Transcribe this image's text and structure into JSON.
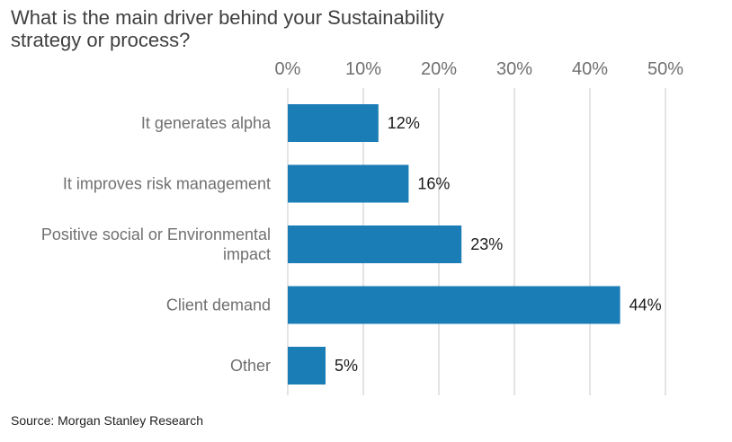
{
  "chart_data": {
    "type": "bar",
    "orientation": "horizontal",
    "title": "What is the main driver behind your Sustainability strategy or process?",
    "categories": [
      [
        "It generates alpha"
      ],
      [
        "It improves risk management"
      ],
      [
        "Positive social or Environmental",
        "impact"
      ],
      [
        "Client demand"
      ],
      [
        "Other"
      ]
    ],
    "values": [
      12,
      16,
      23,
      44,
      5
    ],
    "value_labels": [
      "12%",
      "16%",
      "23%",
      "44%",
      "5%"
    ],
    "xlim": [
      0,
      50
    ],
    "x_ticks": [
      0,
      10,
      20,
      30,
      40,
      50
    ],
    "x_tick_labels": [
      "0%",
      "10%",
      "20%",
      "30%",
      "40%",
      "50%"
    ],
    "xaxis_position": "top",
    "grid": true,
    "bar_color": "#1a7db6",
    "source": "Source: Morgan Stanley Research"
  }
}
